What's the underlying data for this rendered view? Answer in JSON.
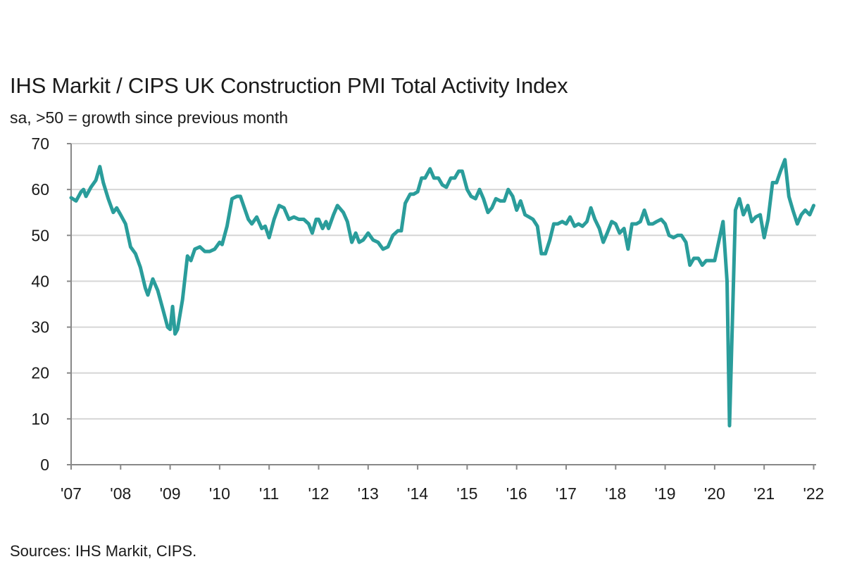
{
  "chart_data": {
    "type": "line",
    "title": "IHS Markit / CIPS UK Construction PMI Total Activity Index",
    "subtitle": "sa, >50 = growth since previous month",
    "source": "Sources: IHS Markit, CIPS.",
    "ylim": [
      0,
      70
    ],
    "yticks": [
      "0",
      "10",
      "20",
      "30",
      "40",
      "50",
      "60",
      "70"
    ],
    "xlim": [
      2007.0,
      2022.05
    ],
    "xticks": [
      "'07",
      "'08",
      "'09",
      "'10",
      "'11",
      "'12",
      "'13",
      "'14",
      "'15",
      "'16",
      "'17",
      "'18",
      "'19",
      "'20",
      "'21",
      "'22"
    ],
    "grid": true,
    "line_color": "#2a9d9b",
    "series": [
      {
        "points": [
          [
            2007.0,
            58.2
          ],
          [
            2007.1,
            57.5
          ],
          [
            2007.2,
            59.5
          ],
          [
            2007.25,
            60.0
          ],
          [
            2007.3,
            58.5
          ],
          [
            2007.4,
            60.5
          ],
          [
            2007.5,
            62.0
          ],
          [
            2007.58,
            65.0
          ],
          [
            2007.65,
            61.5
          ],
          [
            2007.75,
            58.0
          ],
          [
            2007.85,
            55.0
          ],
          [
            2007.92,
            56.0
          ],
          [
            2008.0,
            54.5
          ],
          [
            2008.1,
            52.5
          ],
          [
            2008.2,
            47.5
          ],
          [
            2008.3,
            46.0
          ],
          [
            2008.4,
            43.0
          ],
          [
            2008.5,
            38.5
          ],
          [
            2008.55,
            37.0
          ],
          [
            2008.65,
            40.5
          ],
          [
            2008.75,
            38.0
          ],
          [
            2008.85,
            34.0
          ],
          [
            2008.95,
            30.0
          ],
          [
            2009.0,
            29.5
          ],
          [
            2009.05,
            34.5
          ],
          [
            2009.1,
            28.5
          ],
          [
            2009.15,
            29.5
          ],
          [
            2009.25,
            36.0
          ],
          [
            2009.35,
            45.5
          ],
          [
            2009.42,
            44.5
          ],
          [
            2009.5,
            47.0
          ],
          [
            2009.6,
            47.5
          ],
          [
            2009.7,
            46.5
          ],
          [
            2009.8,
            46.5
          ],
          [
            2009.9,
            47.0
          ],
          [
            2010.0,
            48.5
          ],
          [
            2010.05,
            48.0
          ],
          [
            2010.15,
            52.0
          ],
          [
            2010.25,
            58.0
          ],
          [
            2010.35,
            58.5
          ],
          [
            2010.42,
            58.5
          ],
          [
            2010.5,
            56.0
          ],
          [
            2010.58,
            53.5
          ],
          [
            2010.65,
            52.5
          ],
          [
            2010.75,
            54.0
          ],
          [
            2010.85,
            51.5
          ],
          [
            2010.92,
            52.0
          ],
          [
            2011.0,
            49.5
          ],
          [
            2011.1,
            53.5
          ],
          [
            2011.2,
            56.5
          ],
          [
            2011.3,
            56.0
          ],
          [
            2011.4,
            53.5
          ],
          [
            2011.5,
            54.0
          ],
          [
            2011.6,
            53.5
          ],
          [
            2011.7,
            53.5
          ],
          [
            2011.8,
            52.5
          ],
          [
            2011.87,
            50.5
          ],
          [
            2011.95,
            53.5
          ],
          [
            2012.0,
            53.5
          ],
          [
            2012.08,
            51.5
          ],
          [
            2012.15,
            53.0
          ],
          [
            2012.2,
            51.5
          ],
          [
            2012.3,
            54.5
          ],
          [
            2012.38,
            56.5
          ],
          [
            2012.5,
            55.0
          ],
          [
            2012.58,
            53.0
          ],
          [
            2012.67,
            48.5
          ],
          [
            2012.75,
            50.5
          ],
          [
            2012.82,
            48.5
          ],
          [
            2012.9,
            49.0
          ],
          [
            2013.0,
            50.5
          ],
          [
            2013.1,
            49.0
          ],
          [
            2013.2,
            48.5
          ],
          [
            2013.3,
            47.0
          ],
          [
            2013.4,
            47.5
          ],
          [
            2013.5,
            50.0
          ],
          [
            2013.6,
            51.0
          ],
          [
            2013.67,
            51.0
          ],
          [
            2013.75,
            57.0
          ],
          [
            2013.85,
            59.0
          ],
          [
            2013.92,
            59.0
          ],
          [
            2014.0,
            59.5
          ],
          [
            2014.08,
            62.5
          ],
          [
            2014.15,
            62.5
          ],
          [
            2014.25,
            64.5
          ],
          [
            2014.33,
            62.5
          ],
          [
            2014.42,
            62.5
          ],
          [
            2014.5,
            61.0
          ],
          [
            2014.58,
            60.5
          ],
          [
            2014.67,
            62.5
          ],
          [
            2014.75,
            62.5
          ],
          [
            2014.83,
            64.0
          ],
          [
            2014.9,
            64.0
          ],
          [
            2015.0,
            60.0
          ],
          [
            2015.08,
            58.5
          ],
          [
            2015.17,
            58.0
          ],
          [
            2015.25,
            60.0
          ],
          [
            2015.33,
            58.0
          ],
          [
            2015.42,
            55.0
          ],
          [
            2015.5,
            56.0
          ],
          [
            2015.58,
            58.0
          ],
          [
            2015.67,
            57.5
          ],
          [
            2015.75,
            57.5
          ],
          [
            2015.83,
            60.0
          ],
          [
            2015.92,
            58.5
          ],
          [
            2016.0,
            55.5
          ],
          [
            2016.08,
            57.5
          ],
          [
            2016.17,
            54.5
          ],
          [
            2016.25,
            54.0
          ],
          [
            2016.33,
            53.5
          ],
          [
            2016.42,
            52.0
          ],
          [
            2016.5,
            46.0
          ],
          [
            2016.58,
            46.0
          ],
          [
            2016.67,
            49.0
          ],
          [
            2016.75,
            52.5
          ],
          [
            2016.83,
            52.5
          ],
          [
            2016.92,
            53.0
          ],
          [
            2017.0,
            52.5
          ],
          [
            2017.08,
            54.0
          ],
          [
            2017.17,
            52.0
          ],
          [
            2017.25,
            52.5
          ],
          [
            2017.33,
            52.0
          ],
          [
            2017.42,
            53.0
          ],
          [
            2017.5,
            56.0
          ],
          [
            2017.58,
            53.5
          ],
          [
            2017.67,
            51.5
          ],
          [
            2017.75,
            48.5
          ],
          [
            2017.83,
            50.5
          ],
          [
            2017.92,
            53.0
          ],
          [
            2018.0,
            52.5
          ],
          [
            2018.08,
            50.5
          ],
          [
            2018.17,
            51.5
          ],
          [
            2018.25,
            47.0
          ],
          [
            2018.33,
            52.5
          ],
          [
            2018.42,
            52.5
          ],
          [
            2018.5,
            53.0
          ],
          [
            2018.58,
            55.5
          ],
          [
            2018.67,
            52.5
          ],
          [
            2018.75,
            52.5
          ],
          [
            2018.83,
            53.0
          ],
          [
            2018.92,
            53.5
          ],
          [
            2019.0,
            52.5
          ],
          [
            2019.08,
            50.0
          ],
          [
            2019.17,
            49.5
          ],
          [
            2019.25,
            50.0
          ],
          [
            2019.33,
            50.0
          ],
          [
            2019.42,
            48.5
          ],
          [
            2019.5,
            43.5
          ],
          [
            2019.58,
            45.0
          ],
          [
            2019.67,
            45.0
          ],
          [
            2019.75,
            43.5
          ],
          [
            2019.83,
            44.5
          ],
          [
            2019.92,
            44.5
          ],
          [
            2020.0,
            44.5
          ],
          [
            2020.08,
            48.5
          ],
          [
            2020.17,
            53.0
          ],
          [
            2020.25,
            40.0
          ],
          [
            2020.3,
            8.5
          ],
          [
            2020.35,
            28.0
          ],
          [
            2020.42,
            55.5
          ],
          [
            2020.5,
            58.0
          ],
          [
            2020.58,
            54.5
          ],
          [
            2020.67,
            56.5
          ],
          [
            2020.75,
            53.0
          ],
          [
            2020.83,
            54.0
          ],
          [
            2020.92,
            54.5
          ],
          [
            2021.0,
            49.5
          ],
          [
            2021.08,
            53.5
          ],
          [
            2021.17,
            61.5
          ],
          [
            2021.25,
            61.5
          ],
          [
            2021.33,
            64.0
          ],
          [
            2021.42,
            66.5
          ],
          [
            2021.5,
            58.5
          ],
          [
            2021.58,
            55.5
          ],
          [
            2021.67,
            52.5
          ],
          [
            2021.75,
            54.5
          ],
          [
            2021.83,
            55.5
          ],
          [
            2021.92,
            54.5
          ],
          [
            2022.0,
            56.5
          ]
        ]
      }
    ]
  }
}
